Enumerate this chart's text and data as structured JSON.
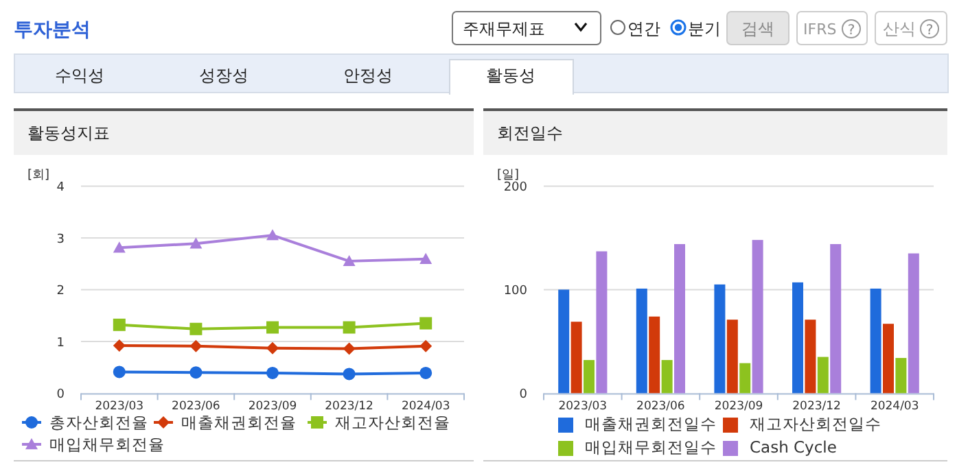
{
  "chart_data": [
    {
      "type": "other",
      "annotations": [
        "투자분석",
        "주재무제표",
        "연간",
        "분기",
        "검색",
        "IFRS",
        "?",
        "산식",
        "?",
        "수익성",
        "성장성",
        "안정성",
        "활동성"
      ]
    },
    {
      "type": "line",
      "title": "활동성지표",
      "ylabel": "[회]",
      "categories": [
        "2023/03",
        "2023/06",
        "2023/09",
        "2023/12",
        "2024/03"
      ],
      "ylim": [
        0,
        4
      ],
      "yticks": [
        0,
        1,
        2,
        3,
        4
      ],
      "grid": "y",
      "legend": "bottom",
      "series": [
        {
          "name": "총자산회전율",
          "color": "#1f6bdc",
          "marker": "circle",
          "values": [
            0.41,
            0.4,
            0.39,
            0.37,
            0.39
          ]
        },
        {
          "name": "매출채권회전율",
          "color": "#d23a0a",
          "marker": "diamond",
          "values": [
            0.92,
            0.91,
            0.87,
            0.86,
            0.91
          ]
        },
        {
          "name": "재고자산회전율",
          "color": "#8dc21f",
          "marker": "square",
          "values": [
            1.32,
            1.24,
            1.27,
            1.27,
            1.35
          ]
        },
        {
          "name": "매입채무회전율",
          "color": "#a97fdb",
          "marker": "triangle",
          "values": [
            2.81,
            2.89,
            3.05,
            2.55,
            2.59
          ]
        }
      ]
    },
    {
      "type": "bar",
      "title": "회전일수",
      "ylabel": "[일]",
      "categories": [
        "2023/03",
        "2023/06",
        "2023/09",
        "2023/12",
        "2024/03"
      ],
      "ylim": [
        0,
        200
      ],
      "yticks": [
        0,
        100,
        200
      ],
      "grid": "y",
      "legend": "bottom",
      "series": [
        {
          "name": "매출채권회전일수",
          "color": "#1f6bdc",
          "values": [
            100,
            101,
            105,
            107,
            101
          ]
        },
        {
          "name": "재고자산회전일수",
          "color": "#d23a0a",
          "values": [
            69,
            74,
            71,
            71,
            67
          ]
        },
        {
          "name": "매입채무회전일수",
          "color": "#8dc21f",
          "values": [
            32,
            32,
            29,
            35,
            34
          ]
        },
        {
          "name": "Cash Cycle",
          "color": "#a97fdb",
          "values": [
            137,
            144,
            148,
            144,
            135
          ]
        }
      ]
    }
  ]
}
